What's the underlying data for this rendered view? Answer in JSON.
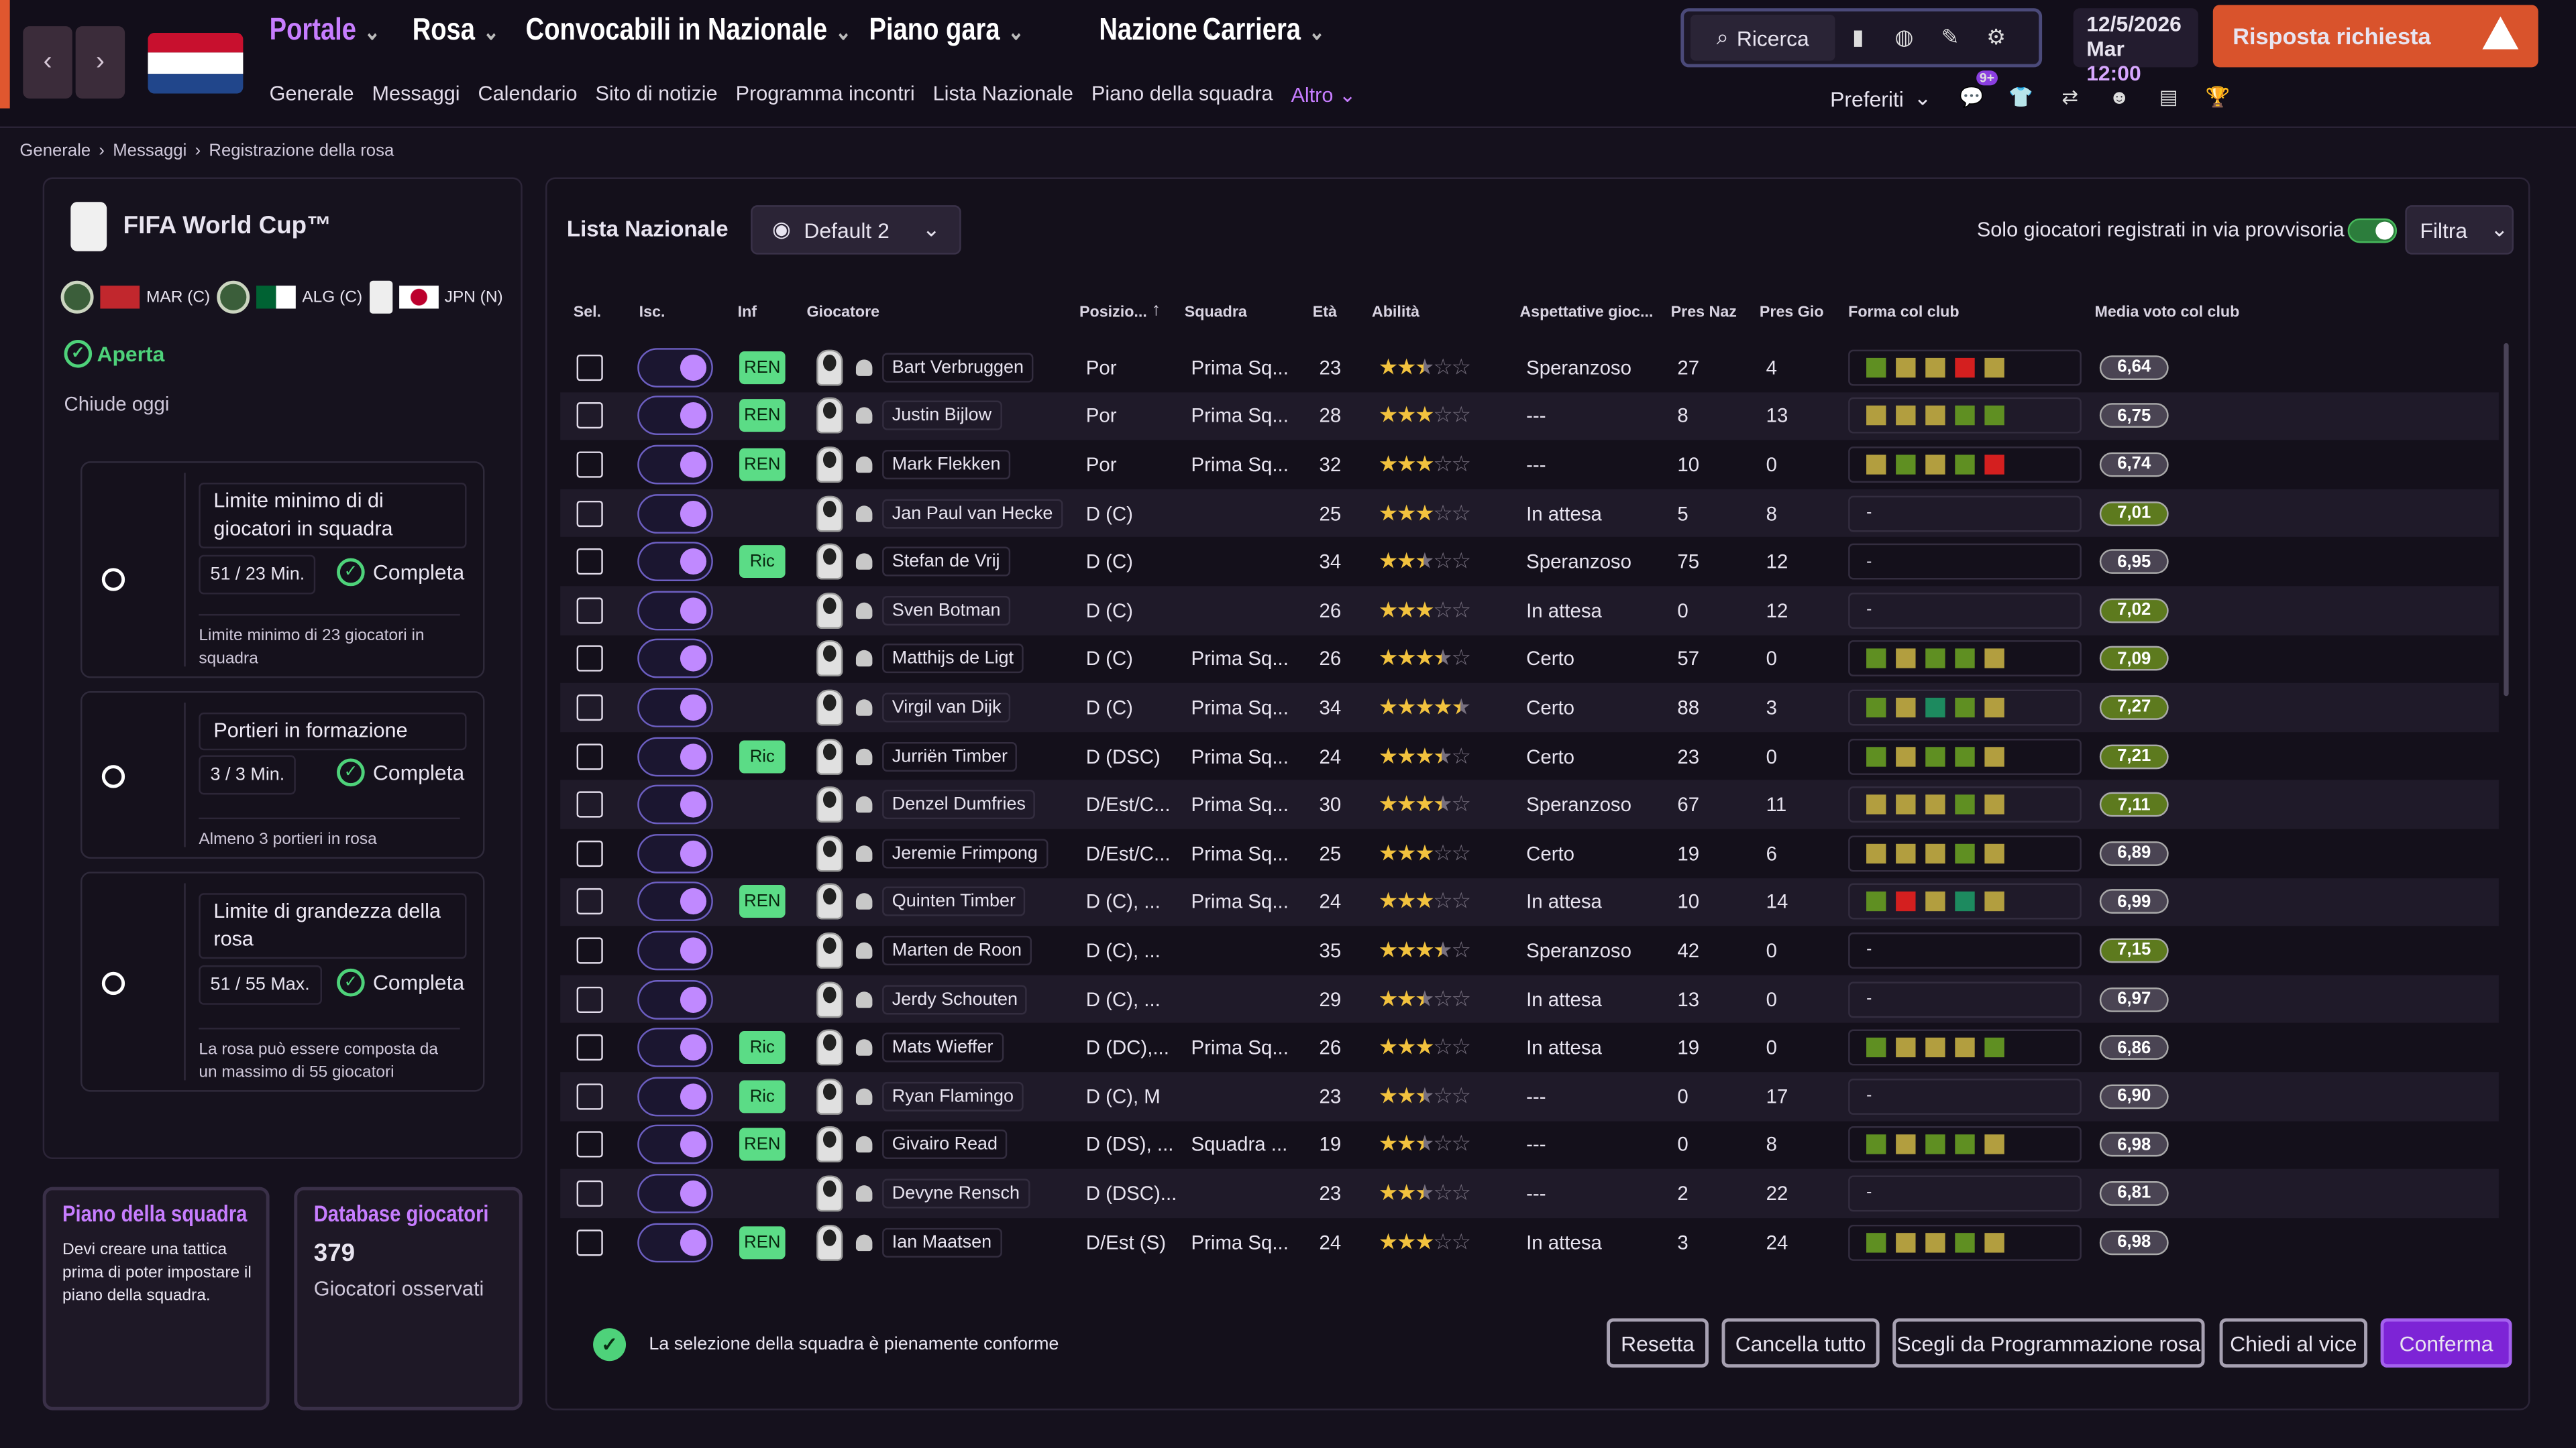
{
  "nav": {
    "back": "‹",
    "forward": "›",
    "menu": [
      {
        "label": "Portale",
        "color": "#c77dff",
        "chev": true
      },
      {
        "label": "Rosa",
        "color": "#ffffff",
        "chev": true
      },
      {
        "label": "Convocabili in Nazionale",
        "color": "#ffffff",
        "chev": true
      },
      {
        "label": "Piano gara",
        "color": "#ffffff",
        "chev": true
      },
      {
        "label": "Nazione",
        "color": "#ffffff",
        "chev": true
      },
      {
        "label": "Carriera",
        "color": "#ffffff",
        "chev": true
      }
    ],
    "submenu": [
      "Generale",
      "Messaggi",
      "Calendario",
      "Sito di notizie",
      "Programma incontri",
      "Lista Nazionale",
      "Piano della squadra"
    ],
    "submenu_active": "Altro"
  },
  "toolbar": {
    "search_label": "Ricerca",
    "date": "12/5/2026",
    "day": "Mar",
    "time": "12:00",
    "response_label": "Risposta richiesta",
    "prefs_label": "Preferiti",
    "badge": "9+"
  },
  "breadcrumb": [
    "Generale",
    "Messaggi",
    "Registrazione della rosa"
  ],
  "left": {
    "title": "FIFA World Cup™",
    "teams": [
      "MAR (C)",
      "ALG (C)",
      "JPN (N)"
    ],
    "status": "Aperta",
    "closes": "Chiude oggi",
    "rules": [
      {
        "title": "Limite minimo di di giocatori in squadra",
        "count": "51  / 23 Min.",
        "done": "Completa",
        "desc": "Limite minimo di 23 giocatori in squadra"
      },
      {
        "title": "Portieri in formazione",
        "count": "3  / 3 Min.",
        "done": "Completa",
        "desc": "Almeno 3 portieri in rosa"
      },
      {
        "title": "Limite di grandezza della rosa",
        "count": "51  / 55 Max.",
        "done": "Completa",
        "desc": "La rosa può essere composta da un massimo di 55 giocatori"
      }
    ],
    "card_plan": {
      "title": "Piano della squadra",
      "text": "Devi creare una tattica prima di poter impostare il piano della squadra."
    },
    "card_db": {
      "title": "Database giocatori",
      "count": "379",
      "text": "Giocatori osservati"
    }
  },
  "main": {
    "list_label": "Lista Nazionale",
    "view": "Default 2",
    "provisional_label": "Solo giocatori registrati in via provvisoria",
    "filter_label": "Filtra",
    "columns": [
      "Sel.",
      "Isc.",
      "Inf",
      "Giocatore",
      "Posizio...",
      "Squadra",
      "Età",
      "Abilità",
      "Aspettative gioc...",
      "Pres Naz",
      "Pres Gio",
      "Forma col club",
      "Media voto col club"
    ],
    "players": [
      {
        "badge": "REN",
        "name": "Bart Verbruggen",
        "pos": "Por",
        "team": "Prima Sq...",
        "age": "23",
        "stars": 2.5,
        "exp": "Speranzoso",
        "naz": "27",
        "gio": "4",
        "form": [
          "g",
          "y",
          "y",
          "r",
          "y"
        ],
        "rating": "6,64",
        "rc": "#4a4453"
      },
      {
        "badge": "REN",
        "name": "Justin Bijlow",
        "pos": "Por",
        "team": "Prima Sq...",
        "age": "28",
        "stars": 3,
        "exp": "---",
        "naz": "8",
        "gio": "13",
        "form": [
          "y",
          "y",
          "y",
          "g",
          "g"
        ],
        "rating": "6,75",
        "rc": "#4a4453"
      },
      {
        "badge": "REN",
        "name": "Mark Flekken",
        "pos": "Por",
        "team": "Prima Sq...",
        "age": "32",
        "stars": 3,
        "exp": "---",
        "naz": "10",
        "gio": "0",
        "form": [
          "y",
          "g",
          "y",
          "g",
          "r"
        ],
        "rating": "6,74",
        "rc": "#4a4453"
      },
      {
        "badge": "",
        "name": "Jan Paul van Hecke",
        "pos": "D (C)",
        "team": "",
        "age": "25",
        "stars": 3,
        "exp": "In attesa",
        "naz": "5",
        "gio": "8",
        "form": [],
        "rating": "7,01",
        "rc": "#5d7a1e"
      },
      {
        "badge": "Ric",
        "name": "Stefan de Vrij",
        "pos": "D (C)",
        "team": "",
        "age": "34",
        "stars": 2.5,
        "exp": "Speranzoso",
        "naz": "75",
        "gio": "12",
        "form": [],
        "rating": "6,95",
        "rc": "#4a4453"
      },
      {
        "badge": "",
        "name": "Sven Botman",
        "pos": "D (C)",
        "team": "",
        "age": "26",
        "stars": 3,
        "exp": "In attesa",
        "naz": "0",
        "gio": "12",
        "form": [],
        "rating": "7,02",
        "rc": "#5d7a1e"
      },
      {
        "badge": "",
        "name": "Matthijs de Ligt",
        "pos": "D (C)",
        "team": "Prima Sq...",
        "age": "26",
        "stars": 3.5,
        "exp": "Certo",
        "naz": "57",
        "gio": "0",
        "form": [
          "g",
          "y",
          "g",
          "g",
          "y"
        ],
        "rating": "7,09",
        "rc": "#5d7a1e"
      },
      {
        "badge": "",
        "name": "Virgil van Dijk",
        "pos": "D (C)",
        "team": "Prima Sq...",
        "age": "34",
        "stars": 4.5,
        "exp": "Certo",
        "naz": "88",
        "gio": "3",
        "form": [
          "g",
          "y",
          "t",
          "g",
          "y"
        ],
        "rating": "7,27",
        "rc": "#5d7a1e"
      },
      {
        "badge": "Ric",
        "name": "Jurriën Timber",
        "pos": "D (DSC)",
        "team": "Prima Sq...",
        "age": "24",
        "stars": 3.5,
        "exp": "Certo",
        "naz": "23",
        "gio": "0",
        "form": [
          "g",
          "y",
          "g",
          "g",
          "y"
        ],
        "rating": "7,21",
        "rc": "#5d7a1e"
      },
      {
        "badge": "",
        "name": "Denzel Dumfries",
        "pos": "D/Est/C...",
        "team": "Prima Sq...",
        "age": "30",
        "stars": 3.5,
        "exp": "Speranzoso",
        "naz": "67",
        "gio": "11",
        "form": [
          "y",
          "y",
          "y",
          "g",
          "y"
        ],
        "rating": "7,11",
        "rc": "#5d7a1e"
      },
      {
        "badge": "",
        "name": "Jeremie Frimpong",
        "pos": "D/Est/C...",
        "team": "Prima Sq...",
        "age": "25",
        "stars": 3,
        "exp": "Certo",
        "naz": "19",
        "gio": "6",
        "form": [
          "y",
          "y",
          "y",
          "g",
          "y"
        ],
        "rating": "6,89",
        "rc": "#4a4453"
      },
      {
        "badge": "REN",
        "name": "Quinten Timber",
        "pos": "D (C), ...",
        "team": "Prima Sq...",
        "age": "24",
        "stars": 3,
        "exp": "In attesa",
        "naz": "10",
        "gio": "14",
        "form": [
          "g",
          "r",
          "y",
          "t",
          "y"
        ],
        "rating": "6,99",
        "rc": "#4a4453"
      },
      {
        "badge": "",
        "name": "Marten de Roon",
        "pos": "D (C), ...",
        "team": "",
        "age": "35",
        "stars": 3.5,
        "exp": "Speranzoso",
        "naz": "42",
        "gio": "0",
        "form": [],
        "rating": "7,15",
        "rc": "#5d7a1e"
      },
      {
        "badge": "",
        "name": "Jerdy Schouten",
        "pos": "D (C), ...",
        "team": "",
        "age": "29",
        "stars": 2.5,
        "exp": "In attesa",
        "naz": "13",
        "gio": "0",
        "form": [],
        "rating": "6,97",
        "rc": "#4a4453"
      },
      {
        "badge": "Ric",
        "name": "Mats Wieffer",
        "pos": "D (DC),...",
        "team": "Prima Sq...",
        "age": "26",
        "stars": 3,
        "exp": "In attesa",
        "naz": "19",
        "gio": "0",
        "form": [
          "g",
          "y",
          "y",
          "y",
          "g"
        ],
        "rating": "6,86",
        "rc": "#4a4453"
      },
      {
        "badge": "Ric",
        "name": "Ryan Flamingo",
        "pos": "D (C), M",
        "team": "",
        "age": "23",
        "stars": 2.5,
        "exp": "---",
        "naz": "0",
        "gio": "17",
        "form": [],
        "rating": "6,90",
        "rc": "#4a4453"
      },
      {
        "badge": "REN",
        "name": "Givairo Read",
        "pos": "D (DS), ...",
        "team": "Squadra ...",
        "age": "19",
        "stars": 2.5,
        "exp": "---",
        "naz": "0",
        "gio": "8",
        "form": [
          "g",
          "y",
          "g",
          "g",
          "y"
        ],
        "rating": "6,98",
        "rc": "#4a4453"
      },
      {
        "badge": "",
        "name": "Devyne Rensch",
        "pos": "D (DSC)...",
        "team": "",
        "age": "23",
        "stars": 2.5,
        "exp": "---",
        "naz": "2",
        "gio": "22",
        "form": [],
        "rating": "6,81",
        "rc": "#4a4453"
      },
      {
        "badge": "REN",
        "name": "Ian Maatsen",
        "pos": "D/Est (S)",
        "team": "Prima Sq...",
        "age": "24",
        "stars": 3,
        "exp": "In attesa",
        "naz": "3",
        "gio": "24",
        "form": [
          "g",
          "y",
          "y",
          "g",
          "y"
        ],
        "rating": "6,98",
        "rc": "#4a4453"
      }
    ],
    "status_msg": "La selezione della squadra è pienamente conforme",
    "buttons": [
      "Resetta",
      "Cancella tutto",
      "Scegli da Programmazione rosa",
      "Chiedi al vice",
      "Conferma"
    ]
  }
}
